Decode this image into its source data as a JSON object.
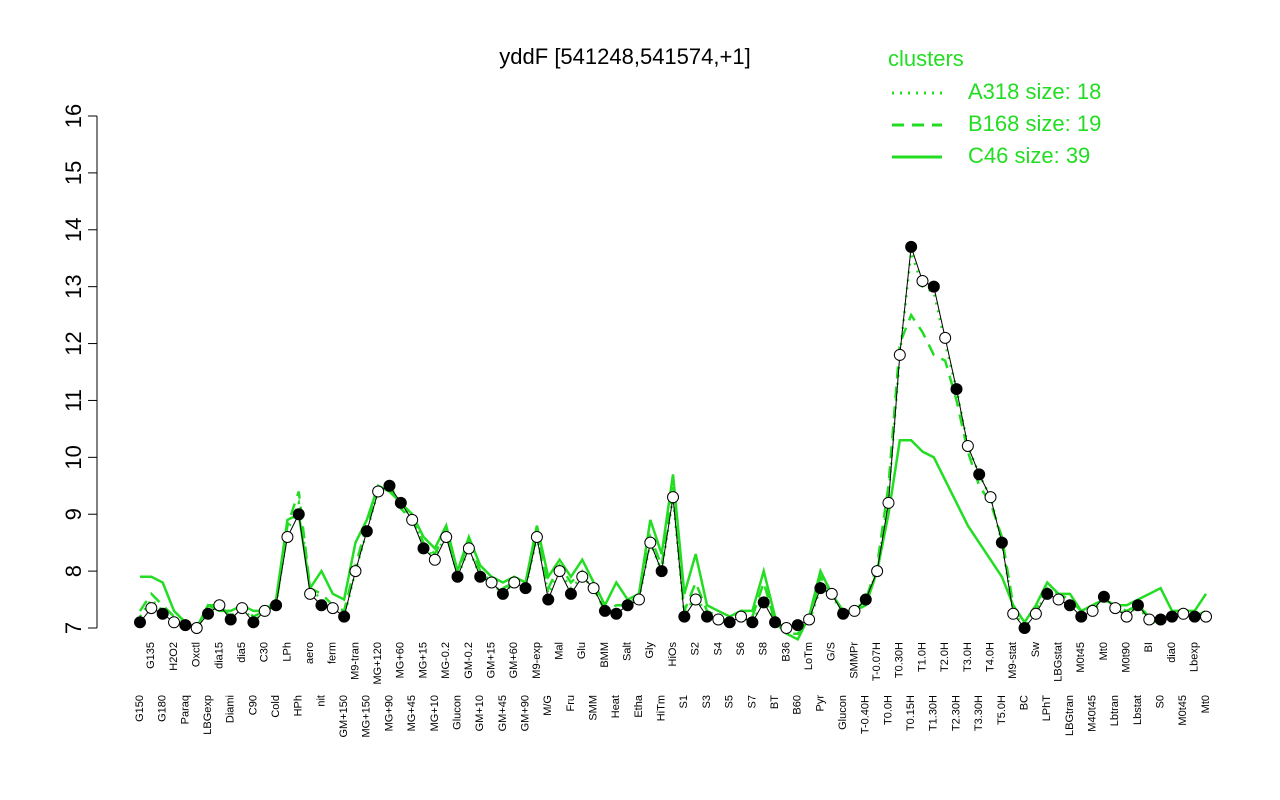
{
  "chart_data": {
    "type": "scatter",
    "title": "yddF [541248,541574,+1]",
    "legend_title": "clusters",
    "ylim": [
      7,
      16
    ],
    "yticks": [
      7,
      8,
      9,
      10,
      11,
      12,
      13,
      14,
      15,
      16
    ],
    "point_color": "#000000",
    "categories": [
      "G150",
      "G135",
      "G180",
      "H2O2",
      "Paraq",
      "Oxctl",
      "LBGexp",
      "dia15",
      "Diami",
      "dia5",
      "C90",
      "C30",
      "Cold",
      "LPh",
      "HPh",
      "aero",
      "nit",
      "ferm",
      "GM+150",
      "M9-tran",
      "MG+150",
      "MG+120",
      "MG+90",
      "MG+60",
      "MG+45",
      "MG+15",
      "MG+10",
      "MG-0.2",
      "Glucon",
      "GM-0.2",
      "GM+10",
      "GM+15",
      "GM+45",
      "GM+60",
      "GM+90",
      "M9-exp",
      "M/G",
      "Mal",
      "Fru",
      "Glu",
      "SMM",
      "BMM",
      "Heat",
      "Salt",
      "Etha",
      "Gly",
      "HiTm",
      "HiOs",
      "S1",
      "S2",
      "S3",
      "S4",
      "S5",
      "S6",
      "S7",
      "S8",
      "BT",
      "B36",
      "B60",
      "LoTm",
      "Pyr",
      "G/S",
      "Glucon",
      "SMMPr",
      "T-0.40H",
      "T-0.07H",
      "T0.0H",
      "T0.30H",
      "T0.15H",
      "T1.0H",
      "T1.30H",
      "T2.0H",
      "T2.30H",
      "T3.0H",
      "T3.30H",
      "T4.0H",
      "T5.0H",
      "M9-stat",
      "BC",
      "Sw",
      "LPhT",
      "LBGstat",
      "LBGtran",
      "M0t45",
      "M40t45",
      "Mt0",
      "Lbtran",
      "M0t90",
      "Lbstat",
      "BI",
      "S0",
      "dia0",
      "M0t45",
      "Lbexp",
      "Mt0"
    ],
    "values": [
      7.1,
      7.35,
      7.25,
      7.1,
      7.05,
      7.0,
      7.25,
      7.4,
      7.15,
      7.35,
      7.1,
      7.3,
      7.4,
      8.6,
      9.0,
      7.6,
      7.4,
      7.35,
      7.2,
      8.0,
      8.7,
      9.4,
      9.5,
      9.2,
      8.9,
      8.4,
      8.2,
      8.6,
      7.9,
      8.4,
      7.9,
      7.8,
      7.6,
      7.8,
      7.7,
      8.6,
      7.5,
      8.0,
      7.6,
      7.9,
      7.7,
      7.3,
      7.25,
      7.4,
      7.5,
      8.5,
      8.0,
      9.3,
      7.2,
      7.5,
      7.2,
      7.15,
      7.1,
      7.2,
      7.1,
      7.45,
      7.1,
      7.0,
      7.05,
      7.15,
      7.7,
      7.6,
      7.25,
      7.3,
      7.5,
      8.0,
      9.2,
      11.8,
      13.7,
      13.1,
      13.0,
      12.1,
      11.2,
      10.2,
      9.7,
      9.3,
      8.5,
      7.25,
      7.0,
      7.25,
      7.6,
      7.5,
      7.4,
      7.2,
      7.3,
      7.55,
      7.35,
      7.2,
      7.4,
      7.15,
      7.15,
      7.2,
      7.25,
      7.2,
      7.2
    ],
    "markers": [
      "filled",
      "open",
      "filled",
      "open",
      "filled",
      "open",
      "filled",
      "open",
      "filled",
      "open",
      "filled",
      "open",
      "filled",
      "open",
      "filled",
      "open",
      "filled",
      "open",
      "filled",
      "open",
      "filled",
      "open",
      "filled",
      "filled",
      "open",
      "filled",
      "open",
      "open",
      "filled",
      "open",
      "filled",
      "open",
      "filled",
      "open",
      "filled",
      "open",
      "filled",
      "open",
      "filled",
      "open",
      "open",
      "filled",
      "filled",
      "filled",
      "open",
      "open",
      "filled",
      "open",
      "filled",
      "open",
      "filled",
      "open",
      "filled",
      "open",
      "filled",
      "filled",
      "filled",
      "open",
      "filled",
      "open",
      "filled",
      "open",
      "filled",
      "open",
      "filled",
      "open",
      "open",
      "open",
      "filled",
      "open",
      "filled",
      "open",
      "filled",
      "open",
      "filled",
      "open",
      "filled",
      "open",
      "filled",
      "open",
      "filled",
      "open",
      "filled",
      "filled",
      "open",
      "filled",
      "open",
      "open",
      "filled",
      "open",
      "filled",
      "filled",
      "open",
      "filled",
      "open"
    ],
    "series": [
      {
        "name": "A318 size: 18",
        "color": "#22dd22",
        "dash": "dotted",
        "values": [
          7.2,
          7.5,
          7.3,
          7.1,
          7.0,
          7.0,
          7.3,
          7.4,
          7.2,
          7.4,
          7.1,
          7.3,
          7.4,
          8.7,
          9.2,
          7.7,
          7.5,
          7.4,
          7.2,
          8.0,
          8.7,
          9.4,
          9.5,
          9.2,
          8.9,
          8.5,
          8.2,
          8.7,
          7.9,
          8.4,
          7.9,
          7.8,
          7.6,
          7.8,
          7.7,
          8.6,
          7.6,
          8.0,
          7.7,
          7.9,
          7.7,
          7.3,
          7.3,
          7.4,
          7.5,
          8.5,
          8.0,
          9.3,
          7.2,
          7.6,
          7.2,
          7.1,
          7.1,
          7.2,
          7.1,
          7.5,
          7.1,
          7.0,
          7.0,
          7.1,
          7.7,
          7.6,
          7.2,
          7.3,
          7.5,
          8.0,
          9.3,
          11.8,
          13.6,
          13.0,
          12.9,
          12.0,
          11.2,
          10.2,
          9.7,
          9.3,
          8.5,
          7.3,
          7.0,
          7.3,
          7.6,
          7.5,
          7.4,
          7.2,
          7.3,
          7.5,
          7.4,
          7.2,
          7.4,
          7.1,
          7.1,
          7.2,
          7.2,
          7.2,
          7.2
        ]
      },
      {
        "name": "B168 size: 19",
        "color": "#22dd22",
        "dash": "dashed",
        "values": [
          7.3,
          7.6,
          7.4,
          7.2,
          7.1,
          7.0,
          7.4,
          7.4,
          7.2,
          7.4,
          7.2,
          7.3,
          7.4,
          8.8,
          9.4,
          7.7,
          7.6,
          7.4,
          7.3,
          8.1,
          8.8,
          9.4,
          9.5,
          9.1,
          8.9,
          8.5,
          8.3,
          8.7,
          8.0,
          8.5,
          8.0,
          7.8,
          7.7,
          7.8,
          7.7,
          8.7,
          7.7,
          8.1,
          7.8,
          8.0,
          7.7,
          7.3,
          7.4,
          7.4,
          7.6,
          8.6,
          8.1,
          9.5,
          7.3,
          7.8,
          7.3,
          7.2,
          7.1,
          7.3,
          7.2,
          7.8,
          7.1,
          6.9,
          6.9,
          7.1,
          7.9,
          7.6,
          7.3,
          7.3,
          7.5,
          8.1,
          9.5,
          12.0,
          12.5,
          12.2,
          11.8,
          11.7,
          11.0,
          10.1,
          9.5,
          9.2,
          8.6,
          7.4,
          7.0,
          7.3,
          7.7,
          7.6,
          7.5,
          7.3,
          7.4,
          7.5,
          7.4,
          7.3,
          7.4,
          7.2,
          7.2,
          7.2,
          7.3,
          7.2,
          7.3
        ]
      },
      {
        "name": "C46 size: 39",
        "color": "#22dd22",
        "dash": "solid",
        "values": [
          7.9,
          7.9,
          7.8,
          7.3,
          7.1,
          7.0,
          7.4,
          7.3,
          7.3,
          7.4,
          7.3,
          7.3,
          7.5,
          8.9,
          9.0,
          7.7,
          8.0,
          7.6,
          7.5,
          8.5,
          8.9,
          9.5,
          9.4,
          9.2,
          9.0,
          8.6,
          8.4,
          8.8,
          8.0,
          8.6,
          8.1,
          7.9,
          7.8,
          7.9,
          7.8,
          8.8,
          7.9,
          8.2,
          7.9,
          8.2,
          7.8,
          7.4,
          7.8,
          7.5,
          7.6,
          8.9,
          8.3,
          9.7,
          7.6,
          8.3,
          7.4,
          7.3,
          7.2,
          7.3,
          7.3,
          8.0,
          7.2,
          6.9,
          6.8,
          7.2,
          8.0,
          7.6,
          7.3,
          7.3,
          7.4,
          8.0,
          9.0,
          10.3,
          10.3,
          10.1,
          10.0,
          9.6,
          9.2,
          8.8,
          8.5,
          8.2,
          7.9,
          7.4,
          7.1,
          7.4,
          7.8,
          7.6,
          7.6,
          7.3,
          7.4,
          7.5,
          7.4,
          7.4,
          7.5,
          7.6,
          7.7,
          7.3,
          7.3,
          7.3,
          7.6
        ]
      }
    ]
  }
}
